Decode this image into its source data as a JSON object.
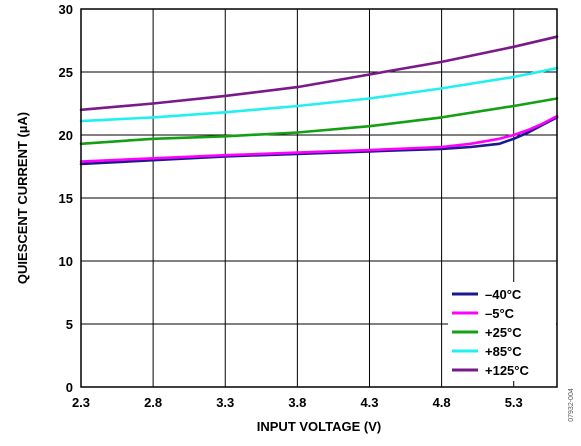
{
  "chart_data": {
    "type": "line",
    "xlabel": "INPUT VOLTAGE (V)",
    "ylabel": "QUIESCENT CURRENT (µA)",
    "xlim": [
      2.3,
      5.6
    ],
    "ylim": [
      0,
      30
    ],
    "x_ticks": [
      "2.3",
      "2.8",
      "3.3",
      "3.8",
      "4.3",
      "4.8",
      "5.3"
    ],
    "y_ticks": [
      "0",
      "5",
      "10",
      "15",
      "20",
      "25",
      "30"
    ],
    "grid": true,
    "legend_position": "bottom-right",
    "series": [
      {
        "name": "–40°C",
        "color": "#1a1a8c",
        "x": [
          2.3,
          2.8,
          3.3,
          3.8,
          4.3,
          4.8,
          5.0,
          5.2,
          5.3,
          5.4,
          5.5,
          5.6
        ],
        "y": [
          17.7,
          18.0,
          18.3,
          18.5,
          18.7,
          18.9,
          19.05,
          19.3,
          19.7,
          20.2,
          20.8,
          21.4
        ]
      },
      {
        "name": "–5°C",
        "color": "#ff00ff",
        "x": [
          2.3,
          2.8,
          3.3,
          3.8,
          4.3,
          4.8,
          5.0,
          5.2,
          5.3,
          5.4,
          5.5,
          5.6
        ],
        "y": [
          17.9,
          18.15,
          18.4,
          18.6,
          18.8,
          19.05,
          19.3,
          19.7,
          20.0,
          20.4,
          20.9,
          21.5
        ]
      },
      {
        "name": "+25°C",
        "color": "#13a013",
        "x": [
          2.3,
          2.8,
          3.3,
          3.8,
          4.3,
          4.8,
          5.3,
          5.6
        ],
        "y": [
          19.3,
          19.7,
          19.9,
          20.2,
          20.7,
          21.4,
          22.3,
          22.9
        ]
      },
      {
        "name": "+85°C",
        "color": "#22f0f0",
        "x": [
          2.3,
          2.8,
          3.3,
          3.8,
          4.3,
          4.8,
          5.3,
          5.6
        ],
        "y": [
          21.1,
          21.4,
          21.8,
          22.3,
          22.9,
          23.7,
          24.6,
          25.3
        ]
      },
      {
        "name": "+125°C",
        "color": "#7a1a8a",
        "x": [
          2.3,
          2.8,
          3.3,
          3.8,
          4.3,
          4.8,
          5.3,
          5.6
        ],
        "y": [
          22.0,
          22.5,
          23.1,
          23.8,
          24.8,
          25.8,
          27.0,
          27.8
        ]
      }
    ]
  },
  "side_note": "07932-004"
}
